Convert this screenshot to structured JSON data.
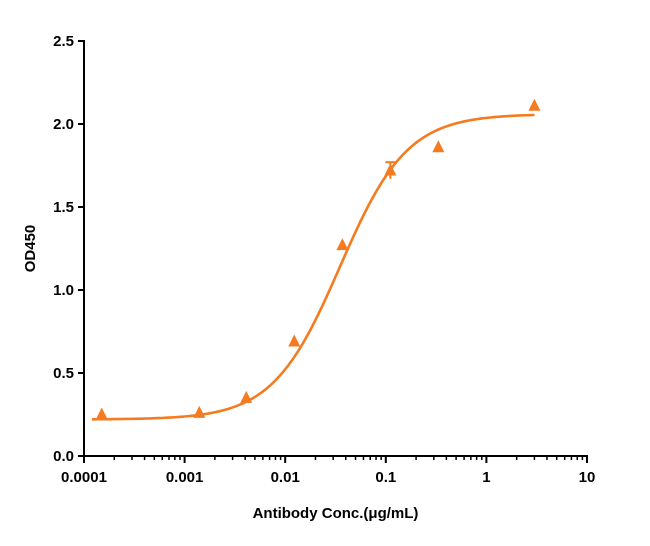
{
  "chart_data": {
    "type": "scatter",
    "title": "",
    "xlabel": "Antibody Conc.(μg/mL)",
    "ylabel": "OD450",
    "x_scale": "log",
    "xlim": [
      0.0001,
      10
    ],
    "ylim": [
      0,
      2.5
    ],
    "x_ticks": [
      {
        "value": 0.0001,
        "label": "0.0001"
      },
      {
        "value": 0.001,
        "label": "0.001"
      },
      {
        "value": 0.01,
        "label": "0.01"
      },
      {
        "value": 0.1,
        "label": "0.1"
      },
      {
        "value": 1,
        "label": "1"
      },
      {
        "value": 10,
        "label": "10"
      }
    ],
    "y_ticks": [
      {
        "value": 0.0,
        "label": "0.0"
      },
      {
        "value": 0.5,
        "label": "0.5"
      },
      {
        "value": 1.0,
        "label": "1.0"
      },
      {
        "value": 1.5,
        "label": "1.5"
      },
      {
        "value": 2.0,
        "label": "2.0"
      },
      {
        "value": 2.5,
        "label": "2.5"
      }
    ],
    "grid": false,
    "legend": "none",
    "color": "#F47B20",
    "series": [
      {
        "marker": "triangle",
        "points": [
          {
            "x": 0.00015,
            "y": 0.25
          },
          {
            "x": 0.0014,
            "y": 0.26
          },
          {
            "x": 0.0041,
            "y": 0.35
          },
          {
            "x": 0.0123,
            "y": 0.69
          },
          {
            "x": 0.037,
            "y": 1.27
          },
          {
            "x": 0.111,
            "y": 1.72,
            "err": 0.05
          },
          {
            "x": 0.333,
            "y": 1.86
          },
          {
            "x": 3.0,
            "y": 2.11
          }
        ]
      }
    ],
    "fit_curve": {
      "model": "4PL",
      "bottom": 0.22,
      "top": 2.06,
      "ec50": 0.035,
      "hill": 1.3,
      "x_range": [
        0.00012,
        3.0
      ]
    }
  }
}
